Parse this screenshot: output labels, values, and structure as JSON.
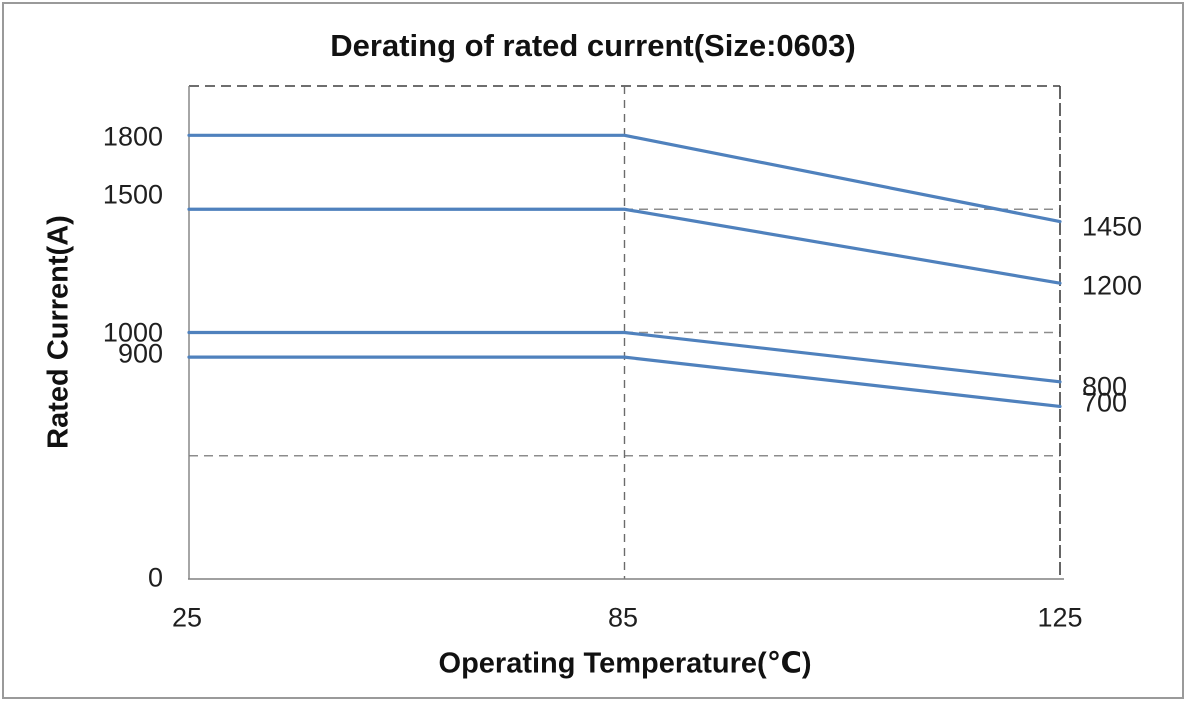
{
  "chart_data": {
    "type": "line",
    "title": "Derating of rated current(Size:0603)",
    "xlabel": "Operating Temperature(℃)",
    "ylabel": "Rated Current(A)",
    "x": [
      25,
      85,
      125
    ],
    "x_tick_labels": [
      "25",
      "85",
      "125"
    ],
    "y_origin_label": "0",
    "ylim": [
      0,
      2000
    ],
    "gridline_values": [
      500,
      1000,
      1500,
      2000
    ],
    "knee_temperature": 85,
    "series": [
      {
        "start_label": "1800",
        "end_label": "1450",
        "values": [
          1800,
          1800,
          1450
        ]
      },
      {
        "start_label": "1500",
        "end_label": "1200",
        "values": [
          1500,
          1500,
          1200
        ]
      },
      {
        "start_label": "1000",
        "end_label": "800",
        "values": [
          1000,
          1000,
          800
        ]
      },
      {
        "start_label": "900",
        "end_label": "700",
        "values": [
          900,
          900,
          700
        ]
      }
    ],
    "line_color": "#4F81BD",
    "colors": {
      "gridline": "#8c8c8c",
      "knee_line": "#6b6b6b",
      "plot_border": "#3f3f3f",
      "axis": "#808080"
    },
    "legend": "none",
    "grid": "dashed"
  },
  "frame": {
    "border_color": "#9a9a9a",
    "background": "#ffffff"
  }
}
